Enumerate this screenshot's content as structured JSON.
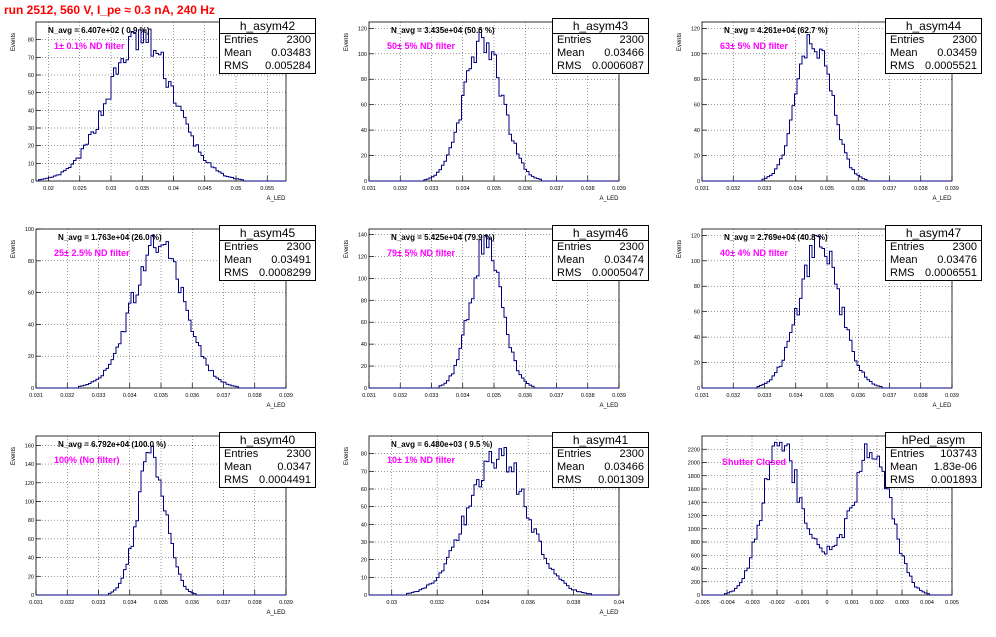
{
  "run_title": "run 2512,   560 V, I_pe ≈ 0.3 nA, 240 Hz",
  "colors": {
    "title": "#ff0000",
    "filter_text": "#ff00ff",
    "histogram_line": "#000080",
    "grid": "#000000"
  },
  "chart_data": [
    {
      "type": "histogram",
      "name": "h_asym42",
      "entries": "2300",
      "mean": "0.03483",
      "rms": "0.005284",
      "navg": "N_avg = 6.407e+02 ( 0.9 %)",
      "filter": "1± 0.1% ND filter",
      "ylabel": "Events",
      "xlabel": "A_LED",
      "xlim": [
        0.018,
        0.058
      ],
      "ylim": [
        0,
        90
      ],
      "xticks": [
        "0.02",
        "0.025",
        "0.03",
        "0.035",
        "0.04",
        "0.045",
        "0.05",
        "0.055"
      ],
      "yticks": [
        "0",
        "10",
        "20",
        "30",
        "40",
        "50",
        "60",
        "70",
        "80"
      ],
      "mean_val": 0.03483,
      "sigma": 0.005284
    },
    {
      "type": "histogram",
      "name": "h_asym43",
      "entries": "2300",
      "mean": "0.03466",
      "rms": "0.0006087",
      "navg": "N_avg = 3.435e+04 (50.6 %)",
      "filter": "50± 5% ND filter",
      "ylabel": "Events",
      "xlabel": "A_LED",
      "xlim": [
        0.031,
        0.039
      ],
      "ylim": [
        0,
        125
      ],
      "xticks": [
        "0.031",
        "0.032",
        "0.033",
        "0.034",
        "0.035",
        "0.036",
        "0.037",
        "0.038",
        "0.039"
      ],
      "yticks": [
        "0",
        "20",
        "40",
        "60",
        "80",
        "100",
        "120"
      ],
      "mean_val": 0.03466,
      "sigma": 0.0006087
    },
    {
      "type": "histogram",
      "name": "h_asym44",
      "entries": "2300",
      "mean": "0.03459",
      "rms": "0.0005521",
      "navg": "N_avg = 4.261e+04 (62.7 %)",
      "filter": "63± 5% ND filter",
      "ylabel": "Events",
      "xlabel": "A_LED",
      "xlim": [
        0.031,
        0.039
      ],
      "ylim": [
        0,
        125
      ],
      "xticks": [
        "0.031",
        "0.032",
        "0.033",
        "0.034",
        "0.035",
        "0.036",
        "0.037",
        "0.038",
        "0.039"
      ],
      "yticks": [
        "0",
        "20",
        "40",
        "60",
        "80",
        "100",
        "120"
      ],
      "mean_val": 0.03459,
      "sigma": 0.0005521
    },
    {
      "type": "histogram",
      "name": "h_asym45",
      "entries": "2300",
      "mean": "0.03491",
      "rms": "0.0008299",
      "navg": "N_avg = 1.763e+04 (26.0 %)",
      "filter": "25± 2.5% ND filter",
      "ylabel": "Events",
      "xlabel": "A_LED",
      "xlim": [
        0.031,
        0.039
      ],
      "ylim": [
        0,
        100
      ],
      "xticks": [
        "0.031",
        "0.032",
        "0.033",
        "0.034",
        "0.035",
        "0.036",
        "0.037",
        "0.038",
        "0.039"
      ],
      "yticks": [
        "0",
        "20",
        "40",
        "60",
        "80",
        "100"
      ],
      "mean_val": 0.03491,
      "sigma": 0.0008299
    },
    {
      "type": "histogram",
      "name": "h_asym46",
      "entries": "2300",
      "mean": "0.03474",
      "rms": "0.0005047",
      "navg": "N_avg = 5.425e+04 (79.9 %)",
      "filter": "79± 5% ND filter",
      "ylabel": "Events",
      "xlabel": "A_LED",
      "xlim": [
        0.031,
        0.039
      ],
      "ylim": [
        0,
        145
      ],
      "xticks": [
        "0.031",
        "0.032",
        "0.033",
        "0.034",
        "0.035",
        "0.036",
        "0.037",
        "0.038",
        "0.039"
      ],
      "yticks": [
        "0",
        "20",
        "40",
        "60",
        "80",
        "100",
        "120",
        "140"
      ],
      "mean_val": 0.03474,
      "sigma": 0.0005047
    },
    {
      "type": "histogram",
      "name": "h_asym47",
      "entries": "2300",
      "mean": "0.03476",
      "rms": "0.0006551",
      "navg": "N_avg = 2.769e+04 (40.8 %)",
      "filter": "40± 4% ND filter",
      "ylabel": "Events",
      "xlabel": "A_LED",
      "xlim": [
        0.031,
        0.039
      ],
      "ylim": [
        0,
        125
      ],
      "xticks": [
        "0.031",
        "0.032",
        "0.033",
        "0.034",
        "0.035",
        "0.036",
        "0.037",
        "0.038",
        "0.039"
      ],
      "yticks": [
        "0",
        "20",
        "40",
        "60",
        "80",
        "100",
        "120"
      ],
      "mean_val": 0.03476,
      "sigma": 0.0006551
    },
    {
      "type": "histogram",
      "name": "h_asym40",
      "entries": "2300",
      "mean": "0.0347",
      "rms": "0.0004491",
      "navg": "N_avg = 6.792e+04 (100.0 %)",
      "filter": "100% (No filter)",
      "ylabel": "Events",
      "xlabel": "A_LED",
      "xlim": [
        0.031,
        0.039
      ],
      "ylim": [
        0,
        170
      ],
      "xticks": [
        "0.031",
        "0.032",
        "0.033",
        "0.034",
        "0.035",
        "0.036",
        "0.037",
        "0.038",
        "0.039"
      ],
      "yticks": [
        "0",
        "20",
        "40",
        "60",
        "80",
        "100",
        "120",
        "140",
        "160"
      ],
      "mean_val": 0.0347,
      "sigma": 0.0004491
    },
    {
      "type": "histogram",
      "name": "h_asym41",
      "entries": "2300",
      "mean": "0.03466",
      "rms": "0.001309",
      "navg": "N_avg = 6.480e+03 ( 9.5 %)",
      "filter": "10± 1% ND filter",
      "ylabel": "Events",
      "xlabel": "A_LED",
      "xlim": [
        0.029,
        0.04
      ],
      "ylim": [
        0,
        90
      ],
      "xticks": [
        "0.03",
        "0.032",
        "0.034",
        "0.036",
        "0.038",
        "0.04"
      ],
      "yticks": [
        "0",
        "10",
        "20",
        "30",
        "40",
        "50",
        "60",
        "70",
        "80"
      ],
      "mean_val": 0.03466,
      "sigma": 0.001309
    },
    {
      "type": "histogram",
      "name": "hPed_asym",
      "entries": "103743",
      "mean": "1.83e-06",
      "rms": "0.001893",
      "navg": "",
      "filter": "Shutter Closed",
      "ylabel": "",
      "xlabel": "",
      "xlim": [
        -0.005,
        0.005
      ],
      "ylim": [
        0,
        2400
      ],
      "xticks": [
        "-0.005",
        "-0.004",
        "-0.003",
        "-0.002",
        "-0.001",
        "0",
        "0.001",
        "0.002",
        "0.003",
        "0.004",
        "0.005"
      ],
      "yticks": [
        "0",
        "200",
        "400",
        "600",
        "800",
        "1000",
        "1200",
        "1400",
        "1600",
        "1800",
        "2000",
        "2200"
      ],
      "mean_val": 0.0,
      "sigma": 0.001893,
      "bimodal": true
    }
  ]
}
